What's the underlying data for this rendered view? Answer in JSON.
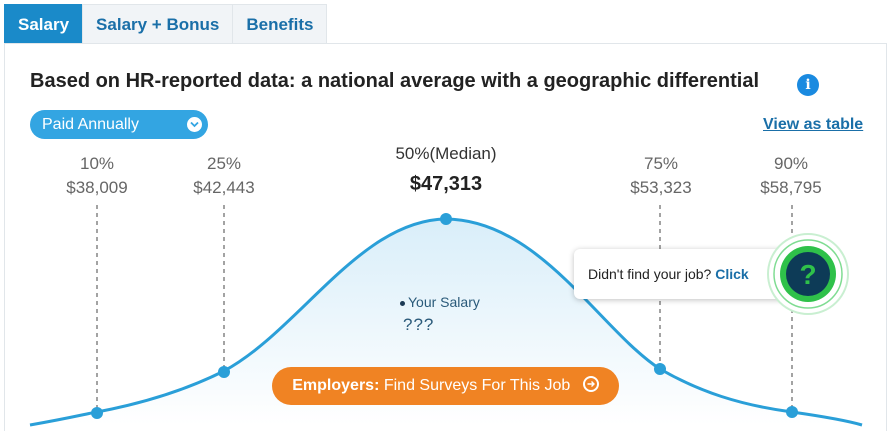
{
  "tabs": [
    {
      "label": "Salary",
      "active": true
    },
    {
      "label": "Salary + Bonus",
      "active": false
    },
    {
      "label": "Benefits",
      "active": false
    }
  ],
  "heading": "Based on HR-reported data: a national average with a geographic differential",
  "info_icon": "i",
  "pay_period": {
    "selected": "Paid Annually"
  },
  "view_table_link": "View as table",
  "percentiles": [
    {
      "label": "10%",
      "value": "$38,009"
    },
    {
      "label": "25%",
      "value": "$42,443"
    },
    {
      "label": "75%",
      "value": "$53,323"
    },
    {
      "label": "90%",
      "value": "$58,795"
    }
  ],
  "median": {
    "label": "50%(Median)",
    "value": "$47,313"
  },
  "your_salary": {
    "label": "Your Salary",
    "value": "???"
  },
  "employers_cta": {
    "bold": "Employers:",
    "text": "Find Surveys For This Job"
  },
  "find_job_prompt": {
    "text": "Didn't find your job?",
    "link": "Click"
  },
  "help_icon": "?",
  "colors": {
    "accent": "#1a8ac9",
    "curve": "#2a9fd8",
    "cta": "#f08323",
    "help_ring": "#2fc14a",
    "help_dark": "#0d3b57"
  }
}
